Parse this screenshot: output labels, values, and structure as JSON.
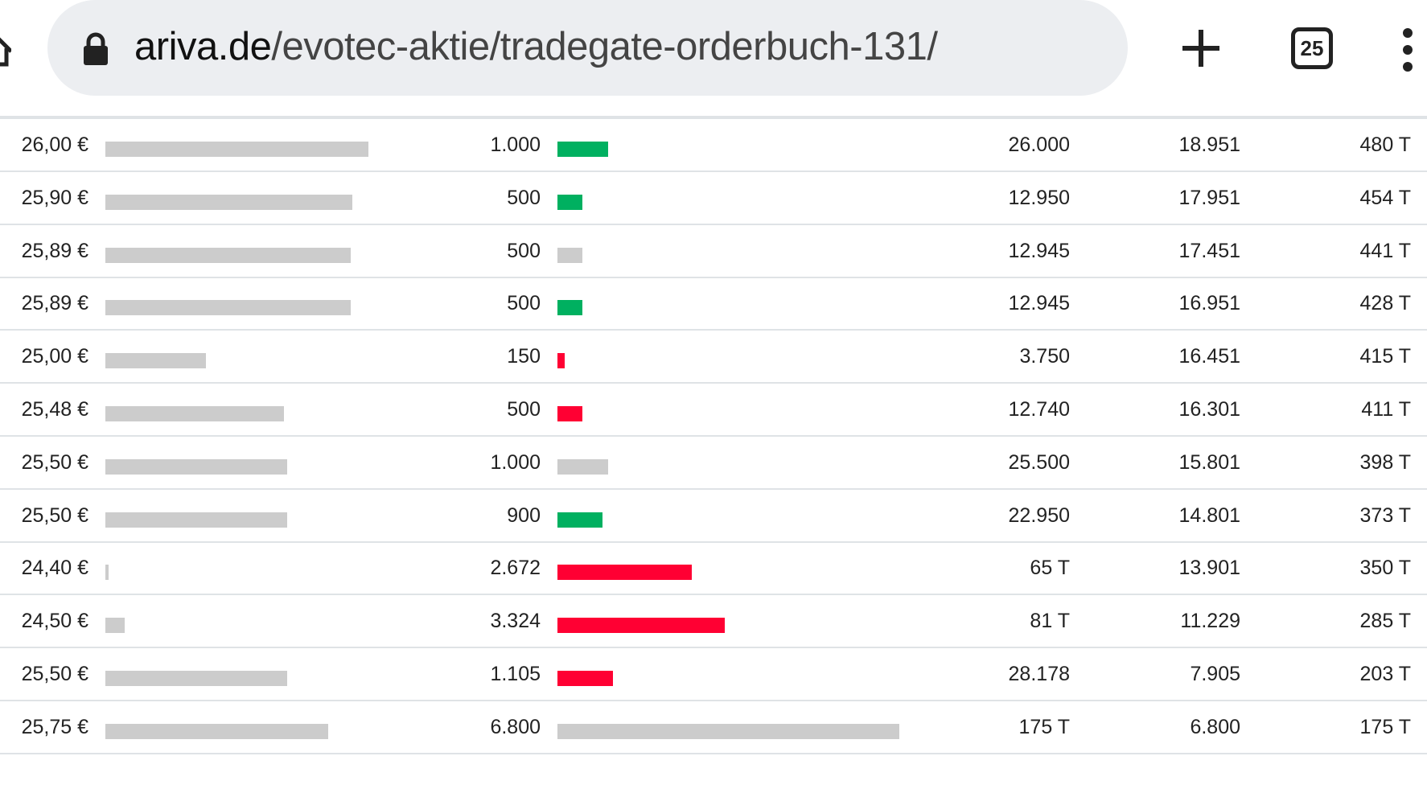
{
  "browser": {
    "url_host": "ariva.de",
    "url_path": "/evotec-aktie/tradegate-orderbuch-131/",
    "tab_count": "25",
    "icons": [
      "home-icon",
      "lock-icon",
      "new-tab-plus-icon",
      "tab-switcher-icon",
      "more-menu-icon"
    ]
  },
  "colors": {
    "buy": "#00b060",
    "sell": "#ff0033",
    "neutral": "#cccccc"
  },
  "orders": [
    {
      "price": "26,00 €",
      "price_value": 26.0,
      "volume": "1.000",
      "volume_value": 1000,
      "direction": "buy",
      "turnover": "26.000",
      "cumulative": "18.951",
      "total": "480 T"
    },
    {
      "price": "25,90 €",
      "price_value": 25.9,
      "volume": "500",
      "volume_value": 500,
      "direction": "buy",
      "turnover": "12.950",
      "cumulative": "17.951",
      "total": "454 T"
    },
    {
      "price": "25,89 €",
      "price_value": 25.89,
      "volume": "500",
      "volume_value": 500,
      "direction": "neutral",
      "turnover": "12.945",
      "cumulative": "17.451",
      "total": "441 T"
    },
    {
      "price": "25,89 €",
      "price_value": 25.89,
      "volume": "500",
      "volume_value": 500,
      "direction": "buy",
      "turnover": "12.945",
      "cumulative": "16.951",
      "total": "428 T"
    },
    {
      "price": "25,00 €",
      "price_value": 25.0,
      "volume": "150",
      "volume_value": 150,
      "direction": "sell",
      "turnover": "3.750",
      "cumulative": "16.451",
      "total": "415 T"
    },
    {
      "price": "25,48 €",
      "price_value": 25.48,
      "volume": "500",
      "volume_value": 500,
      "direction": "sell",
      "turnover": "12.740",
      "cumulative": "16.301",
      "total": "411 T"
    },
    {
      "price": "25,50 €",
      "price_value": 25.5,
      "volume": "1.000",
      "volume_value": 1000,
      "direction": "neutral",
      "turnover": "25.500",
      "cumulative": "15.801",
      "total": "398 T"
    },
    {
      "price": "25,50 €",
      "price_value": 25.5,
      "volume": "900",
      "volume_value": 900,
      "direction": "buy",
      "turnover": "22.950",
      "cumulative": "14.801",
      "total": "373 T"
    },
    {
      "price": "24,40 €",
      "price_value": 24.4,
      "volume": "2.672",
      "volume_value": 2672,
      "direction": "sell",
      "turnover": "65 T",
      "cumulative": "13.901",
      "total": "350 T"
    },
    {
      "price": "24,50 €",
      "price_value": 24.5,
      "volume": "3.324",
      "volume_value": 3324,
      "direction": "sell",
      "turnover": "81 T",
      "cumulative": "11.229",
      "total": "285 T"
    },
    {
      "price": "25,50 €",
      "price_value": 25.5,
      "volume": "1.105",
      "volume_value": 1105,
      "direction": "sell",
      "turnover": "28.178",
      "cumulative": "7.905",
      "total": "203 T"
    },
    {
      "price": "25,75 €",
      "price_value": 25.75,
      "volume": "6.800",
      "volume_value": 6800,
      "direction": "neutral",
      "turnover": "175 T",
      "cumulative": "6.800",
      "total": "175 T"
    }
  ]
}
